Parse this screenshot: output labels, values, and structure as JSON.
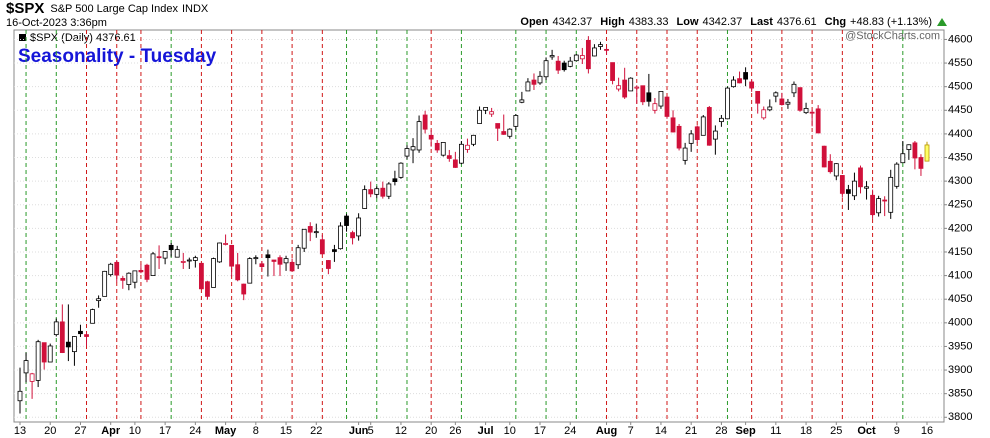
{
  "chart_data": {
    "type": "candlestick",
    "header": {
      "symbol": "$SPX",
      "name": "S&P 500 Large Cap Index",
      "exchange": "INDX",
      "datetime": "16-Oct-2023 3:36pm",
      "stats": [
        {
          "label": "Open",
          "value": "4342.37"
        },
        {
          "label": "High",
          "value": "4383.33"
        },
        {
          "label": "Low",
          "value": "4342.37"
        },
        {
          "label": "Last",
          "value": "4376.61"
        },
        {
          "label": "Chg",
          "value": "+48.83 (+1.13%)"
        }
      ],
      "credit": "@StockCharts.com"
    },
    "legend": "$SPX (Daily) 4376.61",
    "title": "Seasonality - Tuesday",
    "x": [
      "Mar 13",
      "Mar 14",
      "Mar 15",
      "Mar 16",
      "Mar 17",
      "Mar 20",
      "Mar 21",
      "Mar 22",
      "Mar 23",
      "Mar 24",
      "Mar 27",
      "Mar 28",
      "Mar 29",
      "Mar 30",
      "Mar 31",
      "Apr 3",
      "Apr 4",
      "Apr 5",
      "Apr 6",
      "Apr 10",
      "Apr 11",
      "Apr 12",
      "Apr 13",
      "Apr 14",
      "Apr 17",
      "Apr 18",
      "Apr 19",
      "Apr 20",
      "Apr 21",
      "Apr 24",
      "Apr 25",
      "Apr 26",
      "Apr 27",
      "Apr 28",
      "May 1",
      "May 2",
      "May 3",
      "May 4",
      "May 5",
      "May 8",
      "May 9",
      "May 10",
      "May 11",
      "May 12",
      "May 15",
      "May 16",
      "May 17",
      "May 18",
      "May 19",
      "May 22",
      "May 23",
      "May 24",
      "May 25",
      "May 26",
      "May 30",
      "May 31",
      "Jun 1",
      "Jun 2",
      "Jun 5",
      "Jun 6",
      "Jun 7",
      "Jun 8",
      "Jun 9",
      "Jun 12",
      "Jun 13",
      "Jun 14",
      "Jun 15",
      "Jun 16",
      "Jun 20",
      "Jun 21",
      "Jun 22",
      "Jun 23",
      "Jun 26",
      "Jun 27",
      "Jun 28",
      "Jun 29",
      "Jun 30",
      "Jul 3",
      "Jul 5",
      "Jul 6",
      "Jul 7",
      "Jul 10",
      "Jul 11",
      "Jul 12",
      "Jul 13",
      "Jul 14",
      "Jul 17",
      "Jul 18",
      "Jul 19",
      "Jul 20",
      "Jul 21",
      "Jul 24",
      "Jul 25",
      "Jul 26",
      "Jul 27",
      "Jul 28",
      "Jul 31",
      "Aug 1",
      "Aug 2",
      "Aug 3",
      "Aug 4",
      "Aug 7",
      "Aug 8",
      "Aug 9",
      "Aug 10",
      "Aug 11",
      "Aug 14",
      "Aug 15",
      "Aug 16",
      "Aug 17",
      "Aug 18",
      "Aug 21",
      "Aug 22",
      "Aug 23",
      "Aug 24",
      "Aug 25",
      "Aug 28",
      "Aug 29",
      "Aug 30",
      "Aug 31",
      "Sep 1",
      "Sep 5",
      "Sep 6",
      "Sep 7",
      "Sep 8",
      "Sep 11",
      "Sep 12",
      "Sep 13",
      "Sep 14",
      "Sep 15",
      "Sep 18",
      "Sep 19",
      "Sep 20",
      "Sep 21",
      "Sep 22",
      "Sep 25",
      "Sep 26",
      "Sep 27",
      "Sep 28",
      "Sep 29",
      "Oct 2",
      "Oct 3",
      "Oct 4",
      "Oct 5",
      "Oct 6",
      "Oct 9",
      "Oct 10",
      "Oct 11",
      "Oct 12",
      "Oct 13",
      "Oct 16"
    ],
    "open": [
      3835,
      3894,
      3876,
      3878,
      3958,
      3917,
      3975,
      4002,
      3959,
      3939,
      3982,
      3975,
      3999,
      4047,
      4056,
      4102,
      4128,
      4094,
      4081,
      4086,
      4111,
      4122,
      4100,
      4140,
      4137,
      4164,
      4139,
      4130,
      4132,
      4132,
      4126,
      4087,
      4075,
      4129,
      4166,
      4164,
      4123,
      4082,
      4084,
      4136,
      4125,
      4144,
      4133,
      4138,
      4127,
      4128,
      4123,
      4158,
      4204,
      4191,
      4176,
      4132,
      4155,
      4157,
      4226,
      4191,
      4184,
      4242,
      4282,
      4272,
      4285,
      4268,
      4305,
      4308,
      4353,
      4366,
      4366,
      4440,
      4397,
      4380,
      4355,
      4354,
      4345,
      4338,
      4367,
      4378,
      4422,
      4450,
      4442,
      4422,
      4405,
      4395,
      4416,
      4467,
      4491,
      4514,
      4508,
      4521,
      4563,
      4554,
      4550,
      4543,
      4555,
      4559,
      4598,
      4565,
      4585,
      4579,
      4551,
      4495,
      4514,
      4491,
      4498,
      4502,
      4487,
      4450,
      4459,
      4478,
      4434,
      4416,
      4344,
      4380,
      4415,
      4397,
      4456,
      4389,
      4426,
      4432,
      4500,
      4517,
      4530,
      4510,
      4490,
      4434,
      4451,
      4480,
      4474,
      4463,
      4487,
      4498,
      4445,
      4446,
      4453,
      4374,
      4342,
      4311,
      4312,
      4282,
      4269,
      4328,
      4285,
      4270,
      4233,
      4260,
      4234,
      4289,
      4339,
      4367,
      4381,
      4350,
      4342.37
    ],
    "high": [
      3905,
      3937,
      3894,
      3964,
      3958,
      3956,
      4009,
      4039,
      4039,
      3972,
      3996,
      3979,
      4030,
      4058,
      4110,
      4127,
      4133,
      4099,
      4107,
      4110,
      4125,
      4125,
      4150,
      4164,
      4152,
      4169,
      4163,
      4148,
      4138,
      4142,
      4127,
      4089,
      4138,
      4170,
      4187,
      4165,
      4148,
      4083,
      4139,
      4143,
      4131,
      4155,
      4133,
      4143,
      4142,
      4136,
      4165,
      4198,
      4213,
      4210,
      4186,
      4133,
      4165,
      4213,
      4231,
      4195,
      4232,
      4291,
      4299,
      4289,
      4299,
      4298,
      4322,
      4340,
      4376,
      4391,
      4439,
      4449,
      4408,
      4387,
      4382,
      4366,
      4362,
      4385,
      4390,
      4398,
      4458,
      4456,
      4455,
      4422,
      4441,
      4412,
      4442,
      4489,
      4518,
      4528,
      4533,
      4562,
      4578,
      4565,
      4555,
      4563,
      4569,
      4582,
      4607,
      4590,
      4595,
      4584,
      4551,
      4519,
      4540,
      4520,
      4503,
      4502,
      4527,
      4476,
      4490,
      4478,
      4450,
      4421,
      4381,
      4408,
      4418,
      4440,
      4459,
      4418,
      4440,
      4500,
      4522,
      4532,
      4541,
      4515,
      4490,
      4458,
      4473,
      4490,
      4487,
      4474,
      4511,
      4498,
      4466,
      4451,
      4461,
      4375,
      4357,
      4338,
      4313,
      4292,
      4318,
      4333,
      4300,
      4282,
      4269,
      4268,
      4324,
      4340,
      4385,
      4378,
      4385,
      4357,
      4383.33
    ],
    "low": [
      3808,
      3874,
      3839,
      3864,
      3901,
      3917,
      3971,
      3936,
      3919,
      3909,
      3970,
      3951,
      3999,
      4032,
      4056,
      4098,
      4086,
      4072,
      4069,
      4073,
      4105,
      4086,
      4100,
      4114,
      4124,
      4140,
      4139,
      4114,
      4114,
      4117,
      4071,
      4049,
      4075,
      4127,
      4164,
      4098,
      4088,
      4048,
      4084,
      4124,
      4111,
      4098,
      4099,
      4099,
      4110,
      4110,
      4114,
      4150,
      4173,
      4180,
      4145,
      4103,
      4129,
      4155,
      4193,
      4166,
      4174,
      4241,
      4266,
      4264,
      4263,
      4262,
      4291,
      4305,
      4346,
      4338,
      4360,
      4401,
      4373,
      4360,
      4352,
      4341,
      4328,
      4336,
      4360,
      4374,
      4422,
      4442,
      4436,
      4385,
      4398,
      4390,
      4408,
      4465,
      4491,
      4493,
      4504,
      4514,
      4557,
      4527,
      4532,
      4541,
      4554,
      4548,
      4528,
      4564,
      4578,
      4567,
      4505,
      4490,
      4474,
      4491,
      4464,
      4461,
      4458,
      4443,
      4453,
      4432,
      4403,
      4365,
      4335,
      4362,
      4381,
      4397,
      4375,
      4356,
      4415,
      4431,
      4498,
      4507,
      4501,
      4489,
      4443,
      4430,
      4448,
      4467,
      4460,
      4453,
      4478,
      4447,
      4442,
      4416,
      4402,
      4329,
      4316,
      4302,
      4265,
      4239,
      4260,
      4274,
      4261,
      4220,
      4225,
      4226,
      4220,
      4284,
      4339,
      4345,
      4325,
      4311,
      4342.37
    ],
    "close": [
      3855,
      3920,
      3892,
      3960,
      3917,
      3951,
      4002,
      3937,
      3949,
      3971,
      3977,
      3971,
      4028,
      4051,
      4109,
      4124,
      4101,
      4090,
      4105,
      4110,
      4108,
      4092,
      4146,
      4138,
      4151,
      4155,
      4155,
      4130,
      4133,
      4138,
      4072,
      4056,
      4136,
      4169,
      4168,
      4120,
      4091,
      4061,
      4136,
      4138,
      4119,
      4138,
      4130,
      4124,
      4136,
      4110,
      4159,
      4198,
      4192,
      4193,
      4146,
      4115,
      4151,
      4205,
      4206,
      4180,
      4222,
      4282,
      4273,
      4284,
      4268,
      4294,
      4299,
      4338,
      4369,
      4373,
      4426,
      4410,
      4389,
      4366,
      4382,
      4348,
      4329,
      4378,
      4376,
      4397,
      4450,
      4456,
      4447,
      4412,
      4399,
      4410,
      4439,
      4472,
      4510,
      4505,
      4522,
      4555,
      4566,
      4535,
      4536,
      4554,
      4567,
      4566,
      4538,
      4582,
      4589,
      4577,
      4513,
      4502,
      4478,
      4518,
      4499,
      4468,
      4469,
      4464,
      4490,
      4437,
      4404,
      4370,
      4370,
      4400,
      4388,
      4436,
      4376,
      4406,
      4433,
      4497,
      4514,
      4508,
      4516,
      4497,
      4465,
      4451,
      4457,
      4487,
      4462,
      4467,
      4505,
      4450,
      4454,
      4444,
      4402,
      4330,
      4320,
      4337,
      4274,
      4274,
      4300,
      4288,
      4288,
      4229,
      4263,
      4258,
      4308,
      4336,
      4358,
      4377,
      4349,
      4327,
      4376.61
    ],
    "up_color": "#000000",
    "down_color": "#d0103a",
    "last_color": "#ffff66",
    "marker_dates": [
      "Mar 14",
      "Mar 21",
      "Mar 28",
      "Apr 4",
      "Apr 11",
      "Apr 18",
      "Apr 25",
      "May 2",
      "May 9",
      "May 16",
      "May 23",
      "May 30",
      "Jun 6",
      "Jun 13",
      "Jun 20",
      "Jun 27",
      "Jul 11",
      "Jul 18",
      "Jul 25",
      "Aug 1",
      "Aug 8",
      "Aug 15",
      "Aug 22",
      "Aug 29",
      "Sep 5",
      "Sep 12",
      "Sep 19",
      "Sep 26",
      "Oct 3",
      "Oct 10"
    ],
    "marker_up_color": "#2a9a2a",
    "marker_down_color": "#d01818",
    "ylim": [
      3790,
      4620
    ],
    "yticks": [
      3800,
      3850,
      3900,
      3950,
      4000,
      4050,
      4100,
      4150,
      4200,
      4250,
      4300,
      4350,
      4400,
      4450,
      4500,
      4550,
      4600
    ],
    "xticks": [
      {
        "value": "Mar 13",
        "label": "13"
      },
      {
        "value": "Mar 20",
        "label": "20"
      },
      {
        "value": "Mar 27",
        "label": "27"
      },
      {
        "value": "Apr 3",
        "label": "Apr"
      },
      {
        "value": "Apr 10",
        "label": "10"
      },
      {
        "value": "Apr 17",
        "label": "17"
      },
      {
        "value": "Apr 24",
        "label": "24"
      },
      {
        "value": "May 1",
        "label": "May"
      },
      {
        "value": "May 8",
        "label": "8"
      },
      {
        "value": "May 15",
        "label": "15"
      },
      {
        "value": "May 22",
        "label": "22"
      },
      {
        "value": "Jun 1",
        "label": "Jun"
      },
      {
        "value": "Jun 5",
        "label": "5"
      },
      {
        "value": "Jun 12",
        "label": "12"
      },
      {
        "value": "Jun 20",
        "label": "20"
      },
      {
        "value": "Jun 26",
        "label": "26"
      },
      {
        "value": "Jul 3",
        "label": "Jul"
      },
      {
        "value": "Jul 10",
        "label": "10"
      },
      {
        "value": "Jul 17",
        "label": "17"
      },
      {
        "value": "Jul 24",
        "label": "24"
      },
      {
        "value": "Aug 1",
        "label": "Aug"
      },
      {
        "value": "Aug 7",
        "label": "7"
      },
      {
        "value": "Aug 14",
        "label": "14"
      },
      {
        "value": "Aug 21",
        "label": "21"
      },
      {
        "value": "Aug 28",
        "label": "28"
      },
      {
        "value": "Sep 1",
        "label": "Sep"
      },
      {
        "value": "Sep 11",
        "label": "11"
      },
      {
        "value": "Sep 18",
        "label": "18"
      },
      {
        "value": "Sep 25",
        "label": "25"
      },
      {
        "value": "Oct 2",
        "label": "Oct"
      },
      {
        "value": "Oct 9",
        "label": "9"
      },
      {
        "value": "Oct 16",
        "label": "16"
      }
    ],
    "grid": true
  }
}
